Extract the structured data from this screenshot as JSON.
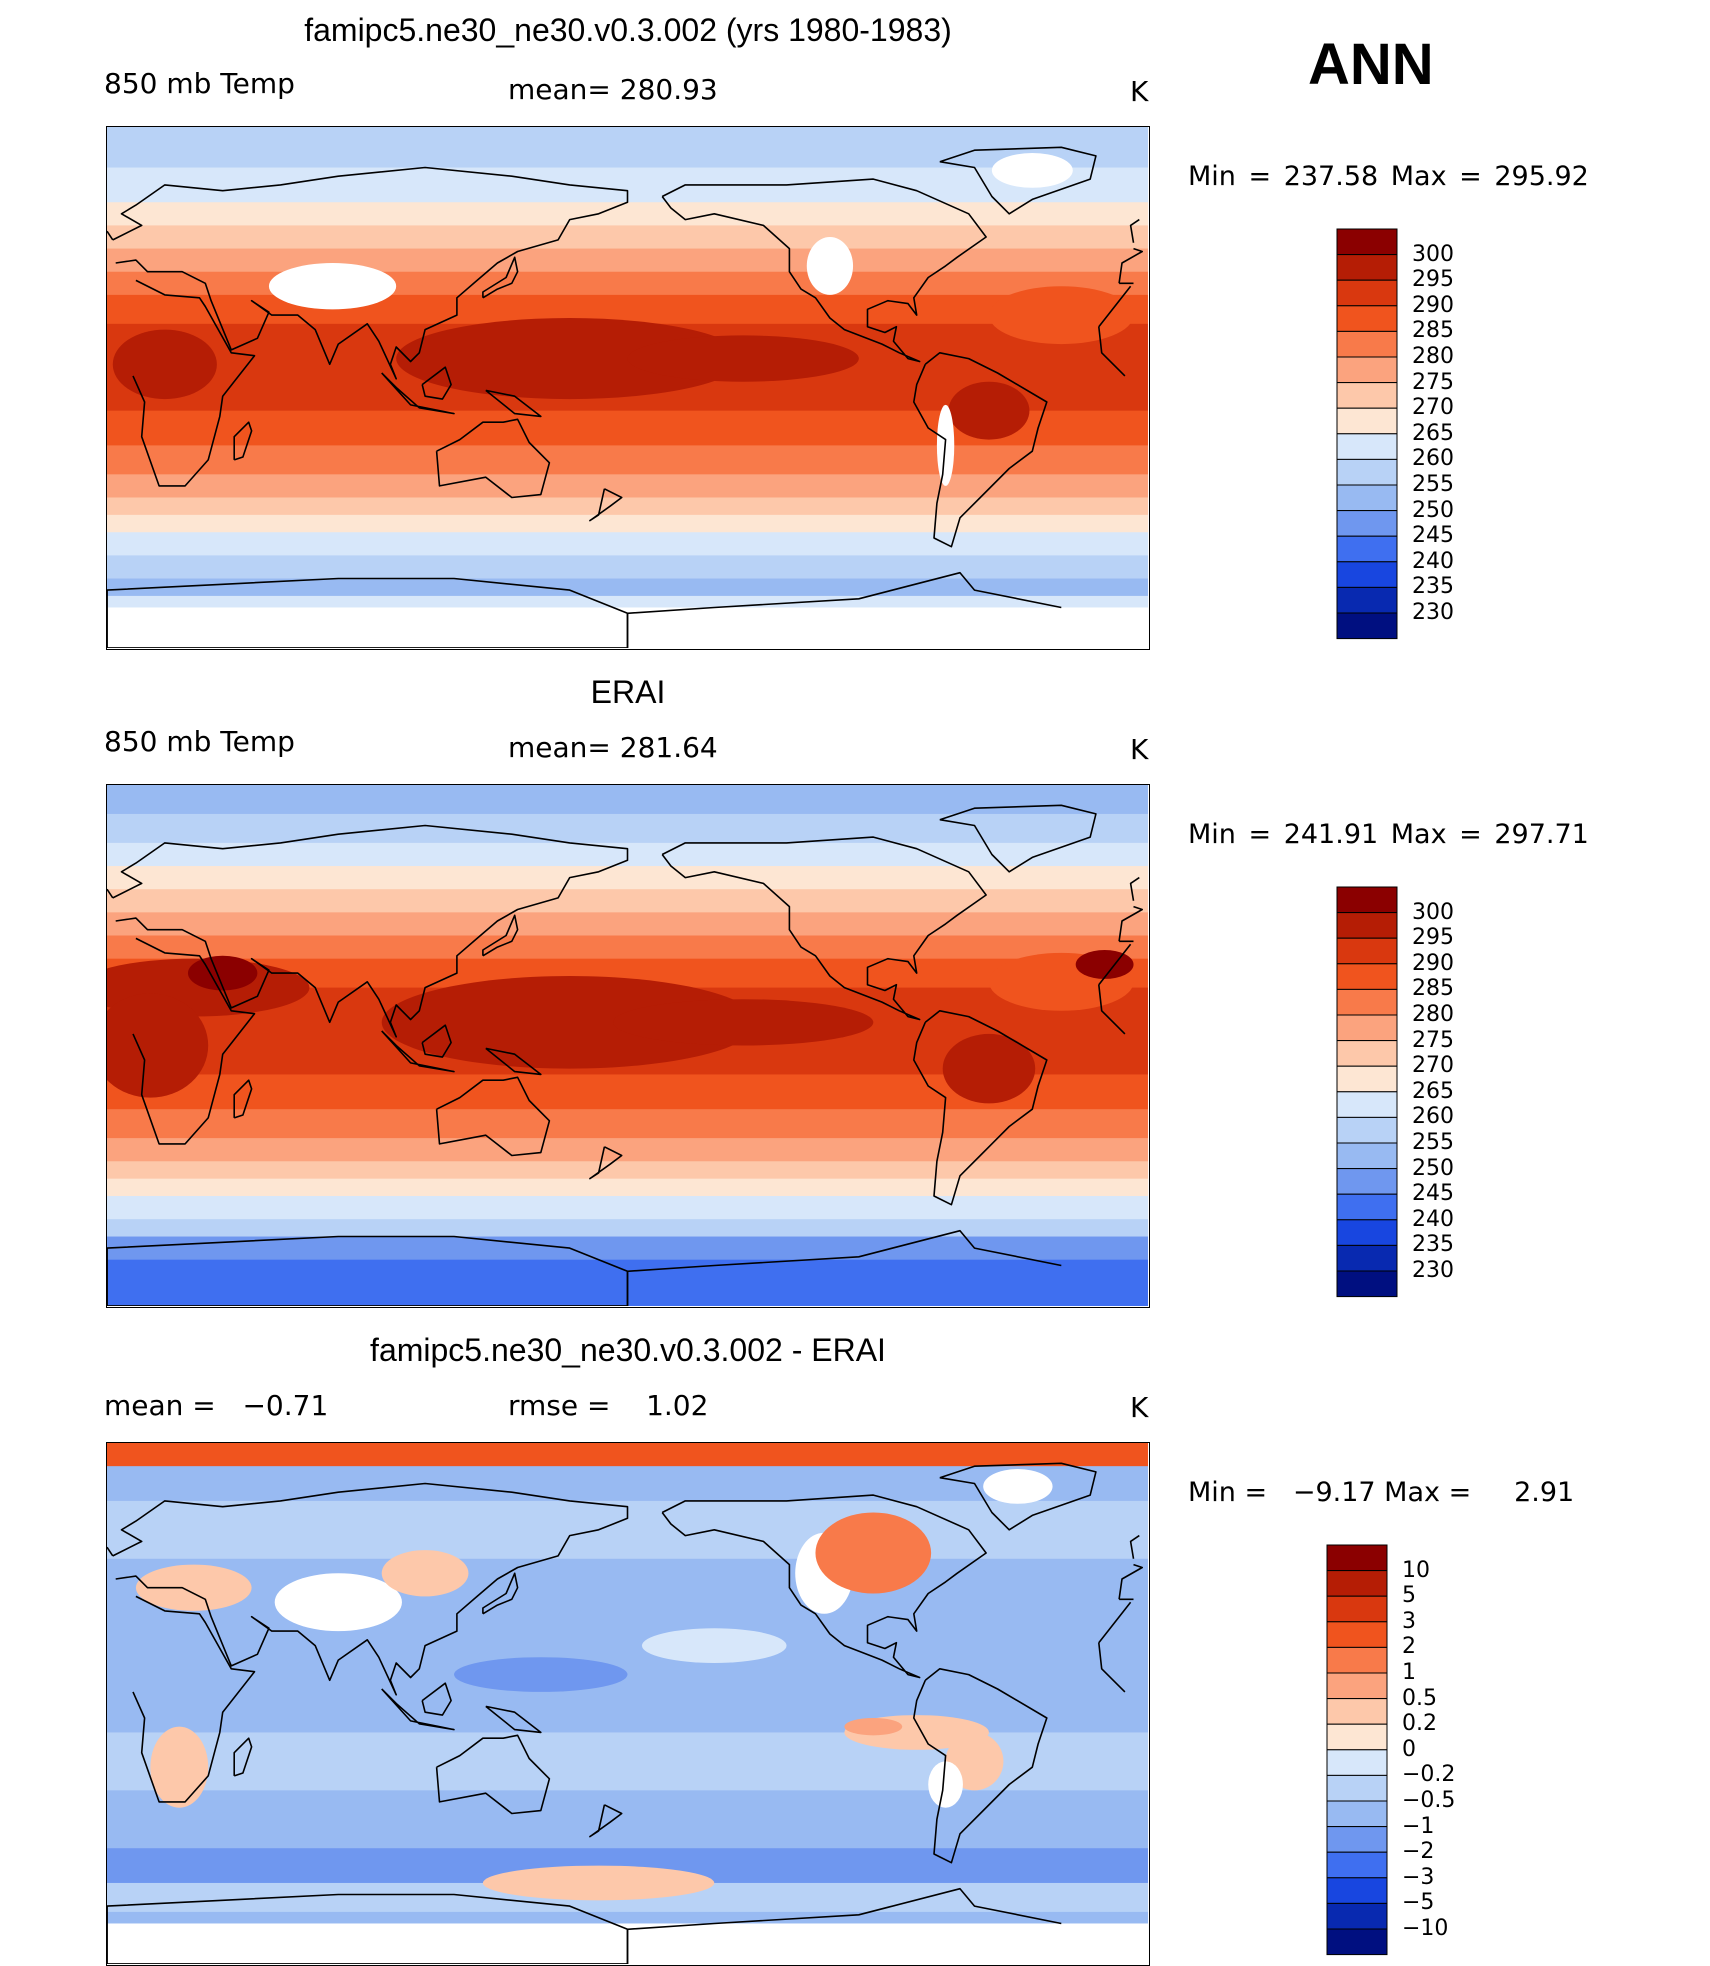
{
  "header": {
    "season": "ANN"
  },
  "chart_data": [
    {
      "type": "heatmap",
      "panel": "model",
      "title": "famipc5.ne30_ne30.v0.3.002 (yrs 1980-1983)",
      "left_label": "850 mb Temp",
      "center_label": "mean= 280.93",
      "units": "K",
      "min_max": "Min = 237.58 Max = 295.92",
      "colorbar": {
        "levels": [
          "300",
          "295",
          "290",
          "285",
          "280",
          "275",
          "270",
          "265",
          "260",
          "255",
          "250",
          "245",
          "240",
          "235",
          "230"
        ],
        "colors": [
          "#8b0000",
          "#b51d05",
          "#d9380f",
          "#f0541e",
          "#f87a4a",
          "#fba37e",
          "#fdc8aa",
          "#fde6d3",
          "#d7e7fa",
          "#b8d2f6",
          "#98baf2",
          "#6f97ef",
          "#3f6ff0",
          "#1846e0",
          "#0829b0",
          "#000f80"
        ]
      }
    },
    {
      "type": "heatmap",
      "panel": "obs",
      "title": "ERAI",
      "left_label": "850 mb Temp",
      "center_label": "mean= 281.64",
      "units": "K",
      "min_max": "Min = 241.91 Max = 297.71",
      "colorbar": {
        "levels": [
          "300",
          "295",
          "290",
          "285",
          "280",
          "275",
          "270",
          "265",
          "260",
          "255",
          "250",
          "245",
          "240",
          "235",
          "230"
        ],
        "colors": [
          "#8b0000",
          "#b51d05",
          "#d9380f",
          "#f0541e",
          "#f87a4a",
          "#fba37e",
          "#fdc8aa",
          "#fde6d3",
          "#d7e7fa",
          "#b8d2f6",
          "#98baf2",
          "#6f97ef",
          "#3f6ff0",
          "#1846e0",
          "#0829b0",
          "#000f80"
        ]
      }
    },
    {
      "type": "heatmap",
      "panel": "diff",
      "title": "famipc5.ne30_ne30.v0.3.002 - ERAI",
      "left_label": "mean =   −0.71",
      "center_label": "rmse =    1.02",
      "units": "K",
      "min_max": "Min =   −9.17 Max =     2.91",
      "colorbar": {
        "levels": [
          "10",
          "5",
          "3",
          "2",
          "1",
          "0.5",
          "0.2",
          "0",
          "−0.2",
          "−0.5",
          "−1",
          "−2",
          "−3",
          "−5",
          "−10"
        ],
        "colors": [
          "#8b0000",
          "#b51d05",
          "#d9380f",
          "#f0541e",
          "#f87a4a",
          "#fba37e",
          "#fdc8aa",
          "#fde6d3",
          "#d7e7fa",
          "#b8d2f6",
          "#98baf2",
          "#6f97ef",
          "#3f6ff0",
          "#1846e0",
          "#0829b0",
          "#000f80"
        ]
      }
    }
  ]
}
